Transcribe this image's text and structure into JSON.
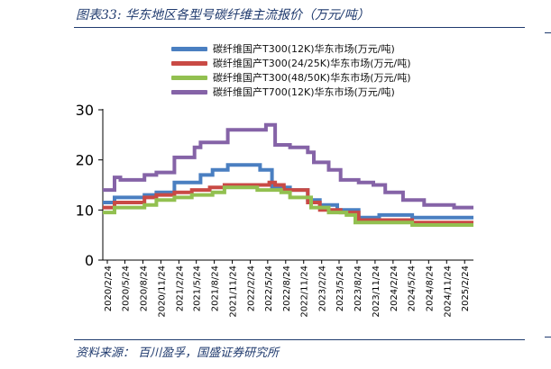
{
  "figure": {
    "title": "图表33:  华东地区各型号碳纤维主流报价（万元/吨）",
    "source": "资料来源：  百川盈孚，国盛证券研究所"
  },
  "colors": {
    "text_accent": "#1f3a6e",
    "axis": "#000000"
  },
  "chart_data": {
    "type": "line",
    "title": "",
    "xlabel": "",
    "ylabel": "",
    "ylim": [
      0,
      30
    ],
    "yticks": [
      0,
      10,
      20,
      30
    ],
    "xlim": [
      "2020-02-01",
      "2025-04-10"
    ],
    "grid": false,
    "legend_position": "top-center",
    "step": true,
    "xtick_labels": [
      "2020/2/24",
      "2020/5/24",
      "2020/8/24",
      "2020/11/24",
      "2021/2/24",
      "2021/5/24",
      "2021/8/24",
      "2021/11/24",
      "2022/2/24",
      "2022/5/24",
      "2022/8/24",
      "2022/11/24",
      "2023/2/24",
      "2023/5/24",
      "2023/8/24",
      "2023/11/24",
      "2024/2/24",
      "2024/5/24",
      "2024/8/24",
      "2024/11/24",
      "2025/2/24"
    ],
    "xtick_dates": [
      "2020-02-24",
      "2020-05-24",
      "2020-08-24",
      "2020-11-24",
      "2021-02-24",
      "2021-05-24",
      "2021-08-24",
      "2021-11-24",
      "2022-02-24",
      "2022-05-24",
      "2022-08-24",
      "2022-11-24",
      "2023-02-24",
      "2023-05-24",
      "2023-08-24",
      "2023-11-24",
      "2024-02-24",
      "2024-05-24",
      "2024-08-24",
      "2024-11-24",
      "2025-02-24"
    ],
    "series": [
      {
        "name": "碳纤维国产T300(12K)华东市场(万元/吨)",
        "color": "#4a7fc1",
        "points": [
          [
            "2020-02-01",
            11.5
          ],
          [
            "2020-04-01",
            12.5
          ],
          [
            "2020-09-01",
            13.0
          ],
          [
            "2020-11-01",
            13.5
          ],
          [
            "2021-02-01",
            15.5
          ],
          [
            "2021-05-01",
            15.5
          ],
          [
            "2021-06-15",
            17.0
          ],
          [
            "2021-08-15",
            18.0
          ],
          [
            "2021-11-01",
            19.0
          ],
          [
            "2022-04-15",
            18.0
          ],
          [
            "2022-06-15",
            14.5
          ],
          [
            "2022-09-15",
            14.0
          ],
          [
            "2022-12-15",
            12.0
          ],
          [
            "2023-02-15",
            11.0
          ],
          [
            "2023-05-15",
            10.0
          ],
          [
            "2023-09-01",
            8.5
          ],
          [
            "2023-12-15",
            9.0
          ],
          [
            "2024-06-01",
            8.5
          ],
          [
            "2025-04-10",
            8.5
          ]
        ]
      },
      {
        "name": "碳纤维国产T300(24/25K)华东市场(万元/吨)",
        "color": "#c94a45",
        "points": [
          [
            "2020-02-01",
            10.5
          ],
          [
            "2020-04-01",
            11.5
          ],
          [
            "2020-09-01",
            12.5
          ],
          [
            "2020-11-01",
            13.0
          ],
          [
            "2021-02-01",
            13.5
          ],
          [
            "2021-05-01",
            14.0
          ],
          [
            "2021-08-01",
            14.5
          ],
          [
            "2021-10-15",
            15.0
          ],
          [
            "2022-06-01",
            15.5
          ],
          [
            "2022-07-01",
            15.0
          ],
          [
            "2022-08-15",
            14.0
          ],
          [
            "2022-12-15",
            11.5
          ],
          [
            "2023-02-15",
            10.0
          ],
          [
            "2023-06-01",
            9.5
          ],
          [
            "2023-09-01",
            8.0
          ],
          [
            "2024-01-15",
            8.0
          ],
          [
            "2024-06-01",
            7.5
          ],
          [
            "2025-04-10",
            7.5
          ]
        ]
      },
      {
        "name": "碳纤维国产T300(48/50K)华东市场(万元/吨)",
        "color": "#92c050",
        "points": [
          [
            "2020-02-01",
            9.5
          ],
          [
            "2020-04-01",
            10.5
          ],
          [
            "2020-09-01",
            11.0
          ],
          [
            "2020-11-01",
            12.0
          ],
          [
            "2021-02-01",
            12.5
          ],
          [
            "2021-05-01",
            13.0
          ],
          [
            "2021-08-15",
            13.5
          ],
          [
            "2021-10-15",
            14.5
          ],
          [
            "2022-02-01",
            14.5
          ],
          [
            "2022-04-01",
            14.0
          ],
          [
            "2022-08-01",
            13.5
          ],
          [
            "2022-09-15",
            12.5
          ],
          [
            "2023-01-01",
            10.5
          ],
          [
            "2023-04-01",
            9.5
          ],
          [
            "2023-07-01",
            9.0
          ],
          [
            "2023-08-15",
            7.5
          ],
          [
            "2024-06-01",
            7.0
          ],
          [
            "2025-04-10",
            7.0
          ]
        ]
      },
      {
        "name": "碳纤维国产T700(12K)华东市场(万元/吨)",
        "color": "#8563a7",
        "points": [
          [
            "2020-02-01",
            14.0
          ],
          [
            "2020-04-01",
            16.5
          ],
          [
            "2020-05-01",
            16.0
          ],
          [
            "2020-09-01",
            17.0
          ],
          [
            "2020-11-01",
            17.5
          ],
          [
            "2021-02-01",
            20.5
          ],
          [
            "2021-05-15",
            22.5
          ],
          [
            "2021-06-15",
            23.5
          ],
          [
            "2021-11-01",
            26.0
          ],
          [
            "2022-05-15",
            27.0
          ],
          [
            "2022-07-01",
            23.0
          ],
          [
            "2022-09-15",
            22.5
          ],
          [
            "2022-12-15",
            21.5
          ],
          [
            "2023-01-15",
            19.5
          ],
          [
            "2023-04-01",
            18.0
          ],
          [
            "2023-06-01",
            16.0
          ],
          [
            "2023-09-01",
            15.5
          ],
          [
            "2023-11-15",
            15.0
          ],
          [
            "2024-01-15",
            13.5
          ],
          [
            "2024-04-15",
            12.0
          ],
          [
            "2024-08-01",
            11.0
          ],
          [
            "2025-01-01",
            10.5
          ],
          [
            "2025-04-10",
            10.5
          ]
        ]
      }
    ]
  }
}
